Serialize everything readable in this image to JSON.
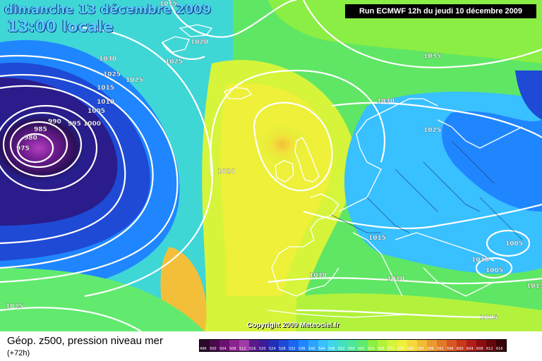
{
  "header": {
    "date_line": "dimanche 13 décembre 2009",
    "time_line": "13:00 locale",
    "run_info": "Run ECMWF 12h du jeudi 10 décembre 2009"
  },
  "copyright": "Copyright 2009 Meteociel.fr",
  "footer": {
    "parameter": "Géop. z500, pression niveau mer",
    "lead_time": "(+72h)"
  },
  "legend": {
    "values": [
      "496",
      "500",
      "504",
      "508",
      "512",
      "516",
      "520",
      "524",
      "528",
      "532",
      "536",
      "540",
      "544",
      "548",
      "552",
      "556",
      "560",
      "564",
      "568",
      "572",
      "576",
      "580",
      "584",
      "588",
      "592",
      "596",
      "600",
      "604",
      "608",
      "612",
      "616"
    ],
    "colors": [
      "#2a0a2a",
      "#4b0a4b",
      "#6a1070",
      "#8a2390",
      "#a03aa6",
      "#5a1a8a",
      "#3a1c9c",
      "#2030b8",
      "#1e4ad6",
      "#1a66f0",
      "#1f86ff",
      "#2aa4ff",
      "#38c0ff",
      "#3fd6e6",
      "#44e0c0",
      "#4ee69a",
      "#62ea6e",
      "#8aee44",
      "#b2f23c",
      "#d6f43a",
      "#eef03a",
      "#f6d83a",
      "#f0bc34",
      "#ea9a2e",
      "#e27828",
      "#d85622",
      "#c8381c",
      "#b01e18",
      "#8a0e12",
      "#62080c",
      "#3a0408"
    ]
  },
  "isobar_labels": [
    "1015",
    "1020",
    "1025",
    "1030",
    "1025",
    "1015",
    "1010",
    "1005",
    "1000",
    "995",
    "990",
    "985",
    "980",
    "975",
    "1025",
    "1020",
    "1030",
    "1035",
    "1025",
    "1015",
    "1010",
    "1005",
    "1010",
    "1005",
    "1015",
    "1010",
    "1015",
    "1013",
    "1025"
  ],
  "colors": {
    "low_center": "#a43cb0",
    "deep_blue": "#1e3fd0",
    "green": "#66e84e",
    "yellow": "#f4ec3c",
    "orange": "#f3bf3a",
    "isobar": "#ffffff",
    "coast": "#ffffff"
  }
}
